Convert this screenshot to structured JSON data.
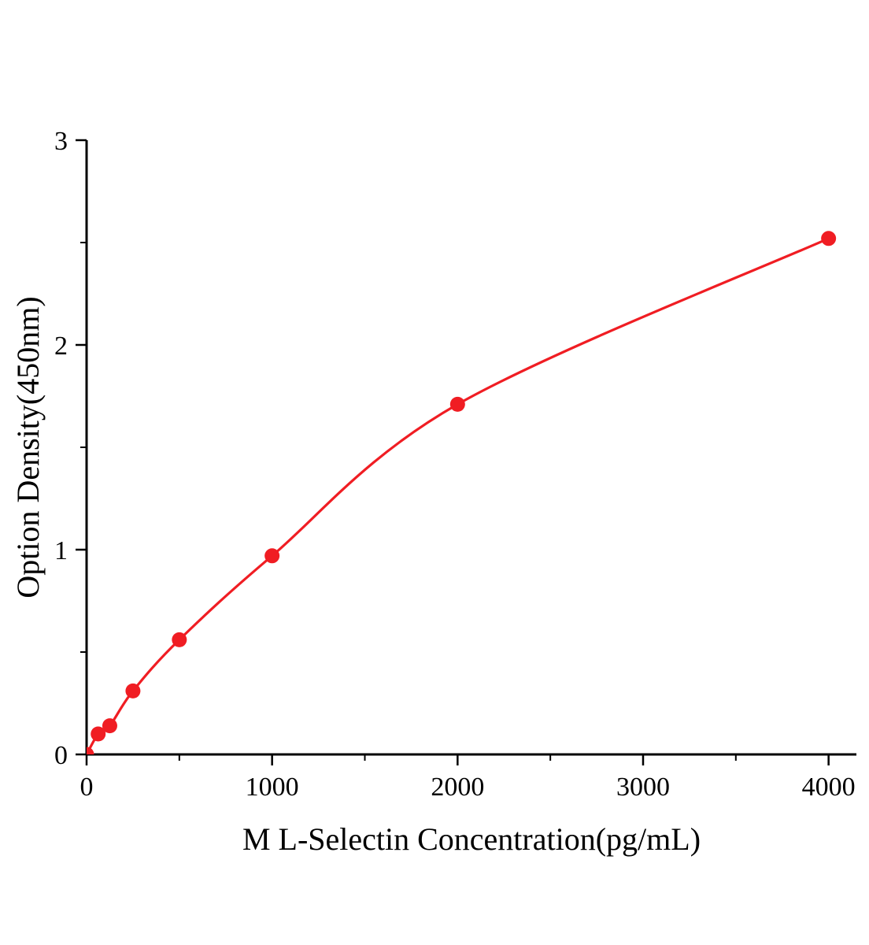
{
  "chart_data": {
    "type": "scatter",
    "title": "",
    "xlabel": "M L-Selectin Concentration(pg/mL)",
    "ylabel": "Option Density(450nm)",
    "x": [
      0,
      62.5,
      125,
      250,
      500,
      1000,
      2000,
      4000
    ],
    "y": [
      0.0,
      0.1,
      0.14,
      0.31,
      0.56,
      0.97,
      1.71,
      2.52
    ],
    "curve_fit": "smooth-through-points",
    "xlim": [
      0,
      4150
    ],
    "ylim": [
      0,
      3
    ],
    "xticks": [
      0,
      1000,
      2000,
      3000,
      4000
    ],
    "yticks": [
      0,
      1,
      2,
      3
    ],
    "x_minor_step": 500,
    "y_minor_step": 0.5,
    "grid": false,
    "legend": "none",
    "point_color": "#f01d23",
    "line_color": "#f01d23",
    "axis_color": "#000000",
    "tick_font_size": 34,
    "point_radius": 9.5
  }
}
